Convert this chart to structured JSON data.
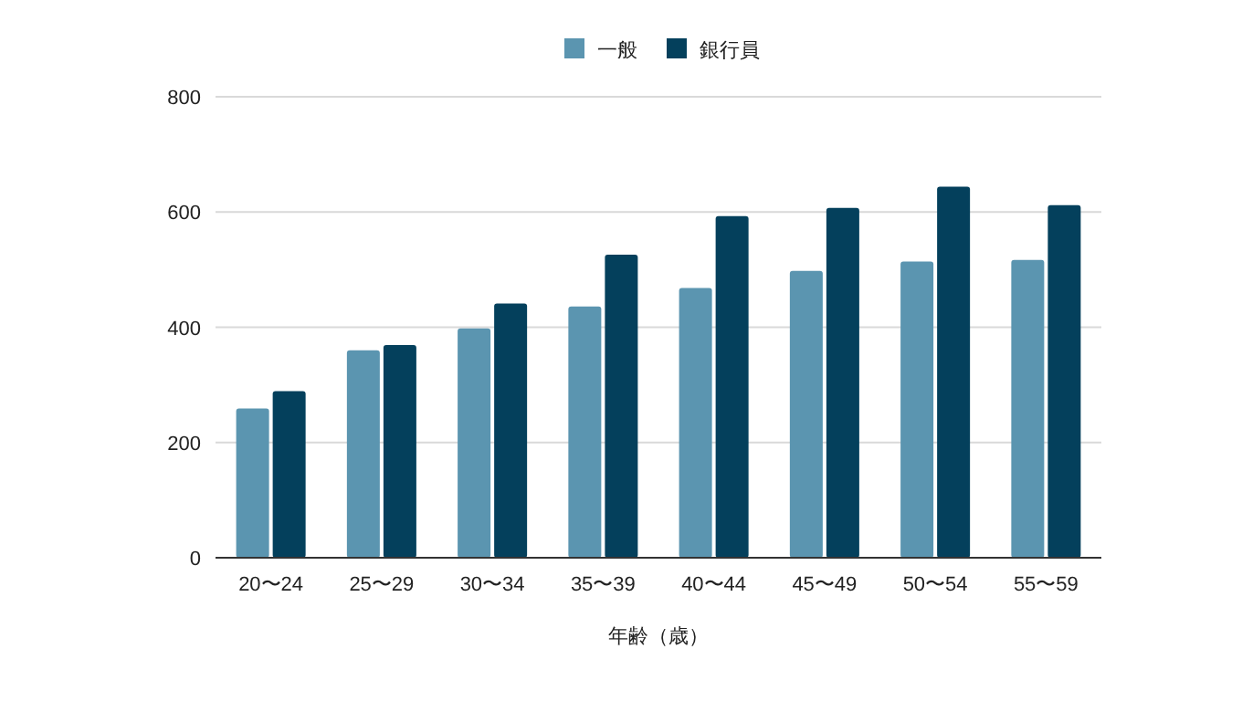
{
  "chart_data": {
    "type": "bar",
    "xlabel": "年齢（歳）",
    "categories": [
      "20〜24",
      "25〜29",
      "30〜34",
      "35〜39",
      "40〜44",
      "45〜49",
      "50〜54",
      "55〜59"
    ],
    "series": [
      {
        "name": "一般",
        "color": "#5b95b0",
        "values": [
          259,
          360,
          398,
          436,
          468,
          498,
          514,
          517
        ]
      },
      {
        "name": "銀行員",
        "color": "#04405c",
        "values": [
          289,
          369,
          441,
          526,
          593,
          607,
          644,
          612
        ]
      }
    ],
    "ylim": [
      0,
      800
    ],
    "yticks": [
      0,
      200,
      400,
      600,
      800
    ],
    "grid": "y",
    "legend": "top"
  }
}
